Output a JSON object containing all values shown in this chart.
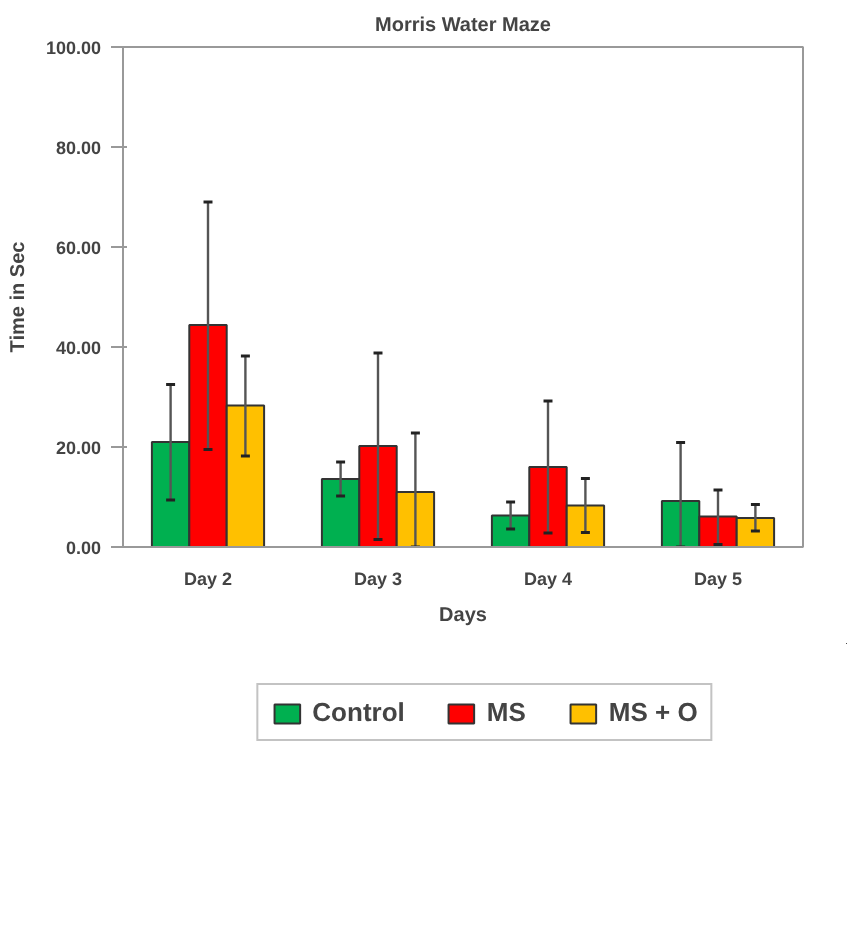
{
  "chart_data": {
    "type": "bar",
    "title": "Morris Water Maze",
    "xlabel": "Days",
    "ylabel": "Time in Sec",
    "categories": [
      "Day 2",
      "Day 3",
      "Day 4",
      "Day 5"
    ],
    "series": [
      {
        "name": "Control",
        "color": "#00b050",
        "values": [
          21.0,
          13.6,
          6.3,
          9.2
        ],
        "errors": [
          [
            9.4,
            32.5
          ],
          [
            10.2,
            17.0
          ],
          [
            3.6,
            9.0
          ],
          [
            0,
            20.9
          ]
        ]
      },
      {
        "name": "MS",
        "color": "#ff0000",
        "values": [
          44.4,
          20.2,
          16.0,
          6.1
        ],
        "errors": [
          [
            19.5,
            69.0
          ],
          [
            1.5,
            38.8
          ],
          [
            2.8,
            29.2
          ],
          [
            0.5,
            11.4
          ]
        ]
      },
      {
        "name": "MS + O",
        "color": "#ffc000",
        "values": [
          28.3,
          11.0,
          8.3,
          5.8
        ],
        "errors": [
          [
            18.2,
            38.2
          ],
          [
            0,
            22.8
          ],
          [
            2.9,
            13.7
          ],
          [
            3.2,
            8.5
          ]
        ]
      }
    ],
    "ylim": [
      0,
      100
    ],
    "yticks": [
      {
        "value": 0,
        "label": "0.00"
      },
      {
        "value": 20,
        "label": "20.00"
      },
      {
        "value": 40,
        "label": "40.00"
      },
      {
        "value": 60,
        "label": "60.00"
      },
      {
        "value": 80,
        "label": "80.00"
      },
      {
        "value": 100,
        "label": "100.00"
      }
    ],
    "grid": false,
    "legend": "bottom"
  }
}
